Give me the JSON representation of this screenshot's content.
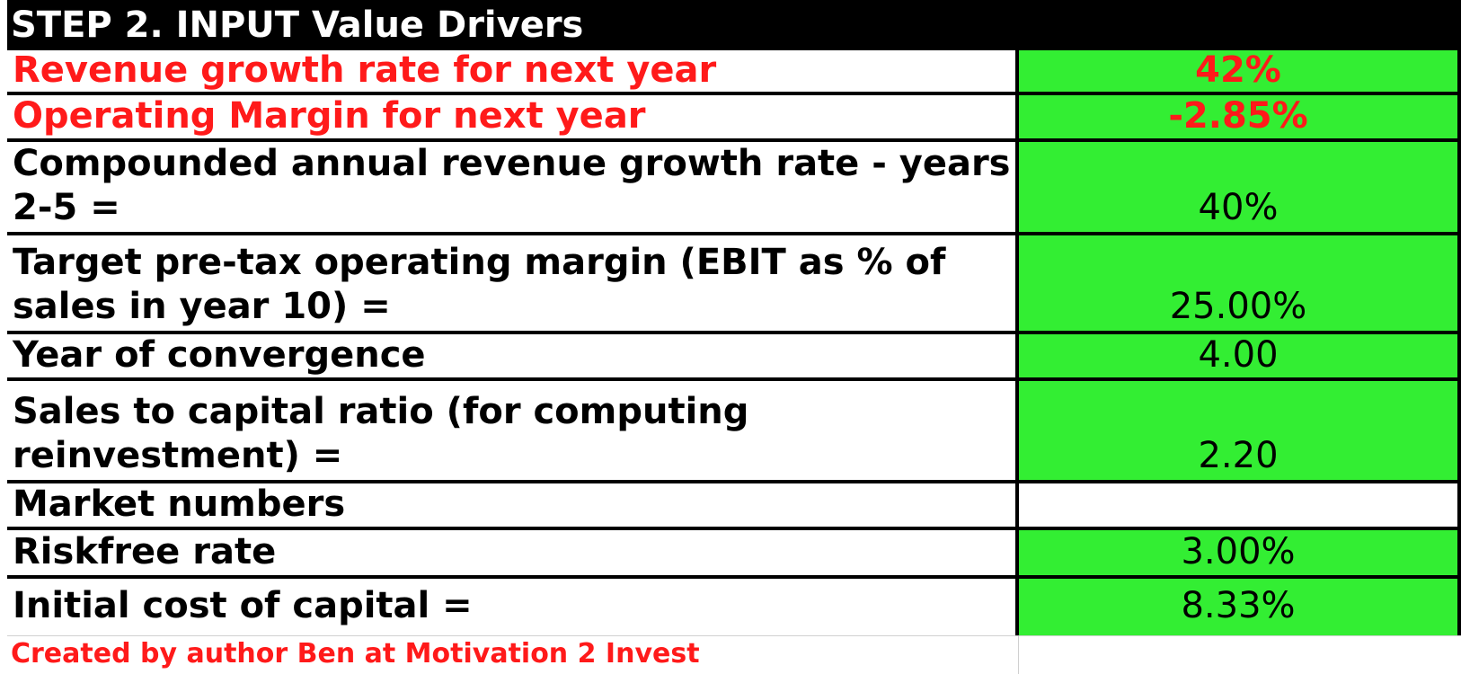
{
  "header": {
    "title": "STEP 2. INPUT Value Drivers"
  },
  "rows": [
    {
      "label": "Revenue growth rate for next year",
      "value": "42%"
    },
    {
      "label": "Operating Margin for next year",
      "value": "-2.85%"
    },
    {
      "label": "Compounded annual revenue growth rate - years 2-5 =",
      "value": "40%"
    },
    {
      "label": "Target pre-tax operating margin (EBIT as % of sales in year 10) =",
      "value": "25.00%"
    },
    {
      "label": "Year of convergence",
      "value": "4.00"
    },
    {
      "label": "Sales to capital ratio  (for computing reinvestment) =",
      "value": "2.20"
    },
    {
      "label": "Market numbers",
      "value": ""
    },
    {
      "label": "Riskfree rate",
      "value": "3.00%"
    },
    {
      "label": "Initial cost of capital =",
      "value": "8.33%"
    }
  ],
  "footer": {
    "credit": "Created by author Ben at Motivation 2 Invest"
  },
  "colors": {
    "input_cell": "#33ee33",
    "highlight_text": "#ff1a1a",
    "header_bg": "#000000"
  }
}
